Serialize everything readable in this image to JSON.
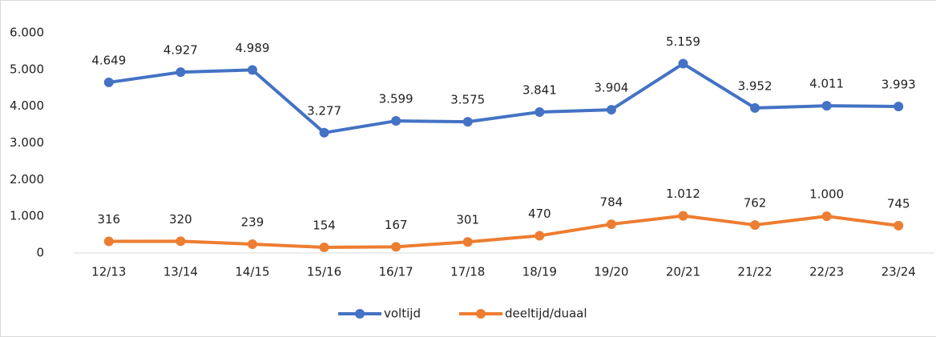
{
  "chart_data": {
    "type": "line",
    "categories": [
      "12/13",
      "13/14",
      "14/15",
      "15/16",
      "16/17",
      "17/18",
      "18/19",
      "19/20",
      "20/21",
      "21/22",
      "22/23",
      "23/24"
    ],
    "series": [
      {
        "name": "voltijd",
        "color": "#4472c4",
        "values": [
          4649,
          4927,
          4989,
          3277,
          3599,
          3575,
          3841,
          3904,
          5159,
          3952,
          4011,
          3993
        ],
        "value_labels": [
          "4.649",
          "4.927",
          "4.989",
          "3.277",
          "3.599",
          "3.575",
          "3.841",
          "3.904",
          "5.159",
          "3.952",
          "4.011",
          "3.993"
        ]
      },
      {
        "name": "deeltijd/duaal",
        "color": "#ed7d31",
        "values": [
          316,
          320,
          239,
          154,
          167,
          301,
          470,
          784,
          1012,
          762,
          1000,
          745
        ],
        "value_labels": [
          "316",
          "320",
          "239",
          "154",
          "167",
          "301",
          "470",
          "784",
          "1.012",
          "762",
          "1.000",
          "745"
        ]
      }
    ],
    "ylim": [
      0,
      6000
    ],
    "yticks": [
      0,
      {
        "value": 1000,
        "label": "1.000"
      },
      {
        "value": 2000,
        "label": "2.000"
      },
      {
        "value": 3000,
        "label": "3.000"
      },
      {
        "value": 4000,
        "label": "4.000"
      },
      {
        "value": 5000,
        "label": "5.000"
      },
      {
        "value": 6000,
        "label": "6.000"
      }
    ],
    "grid": false,
    "legend": "bottom"
  }
}
